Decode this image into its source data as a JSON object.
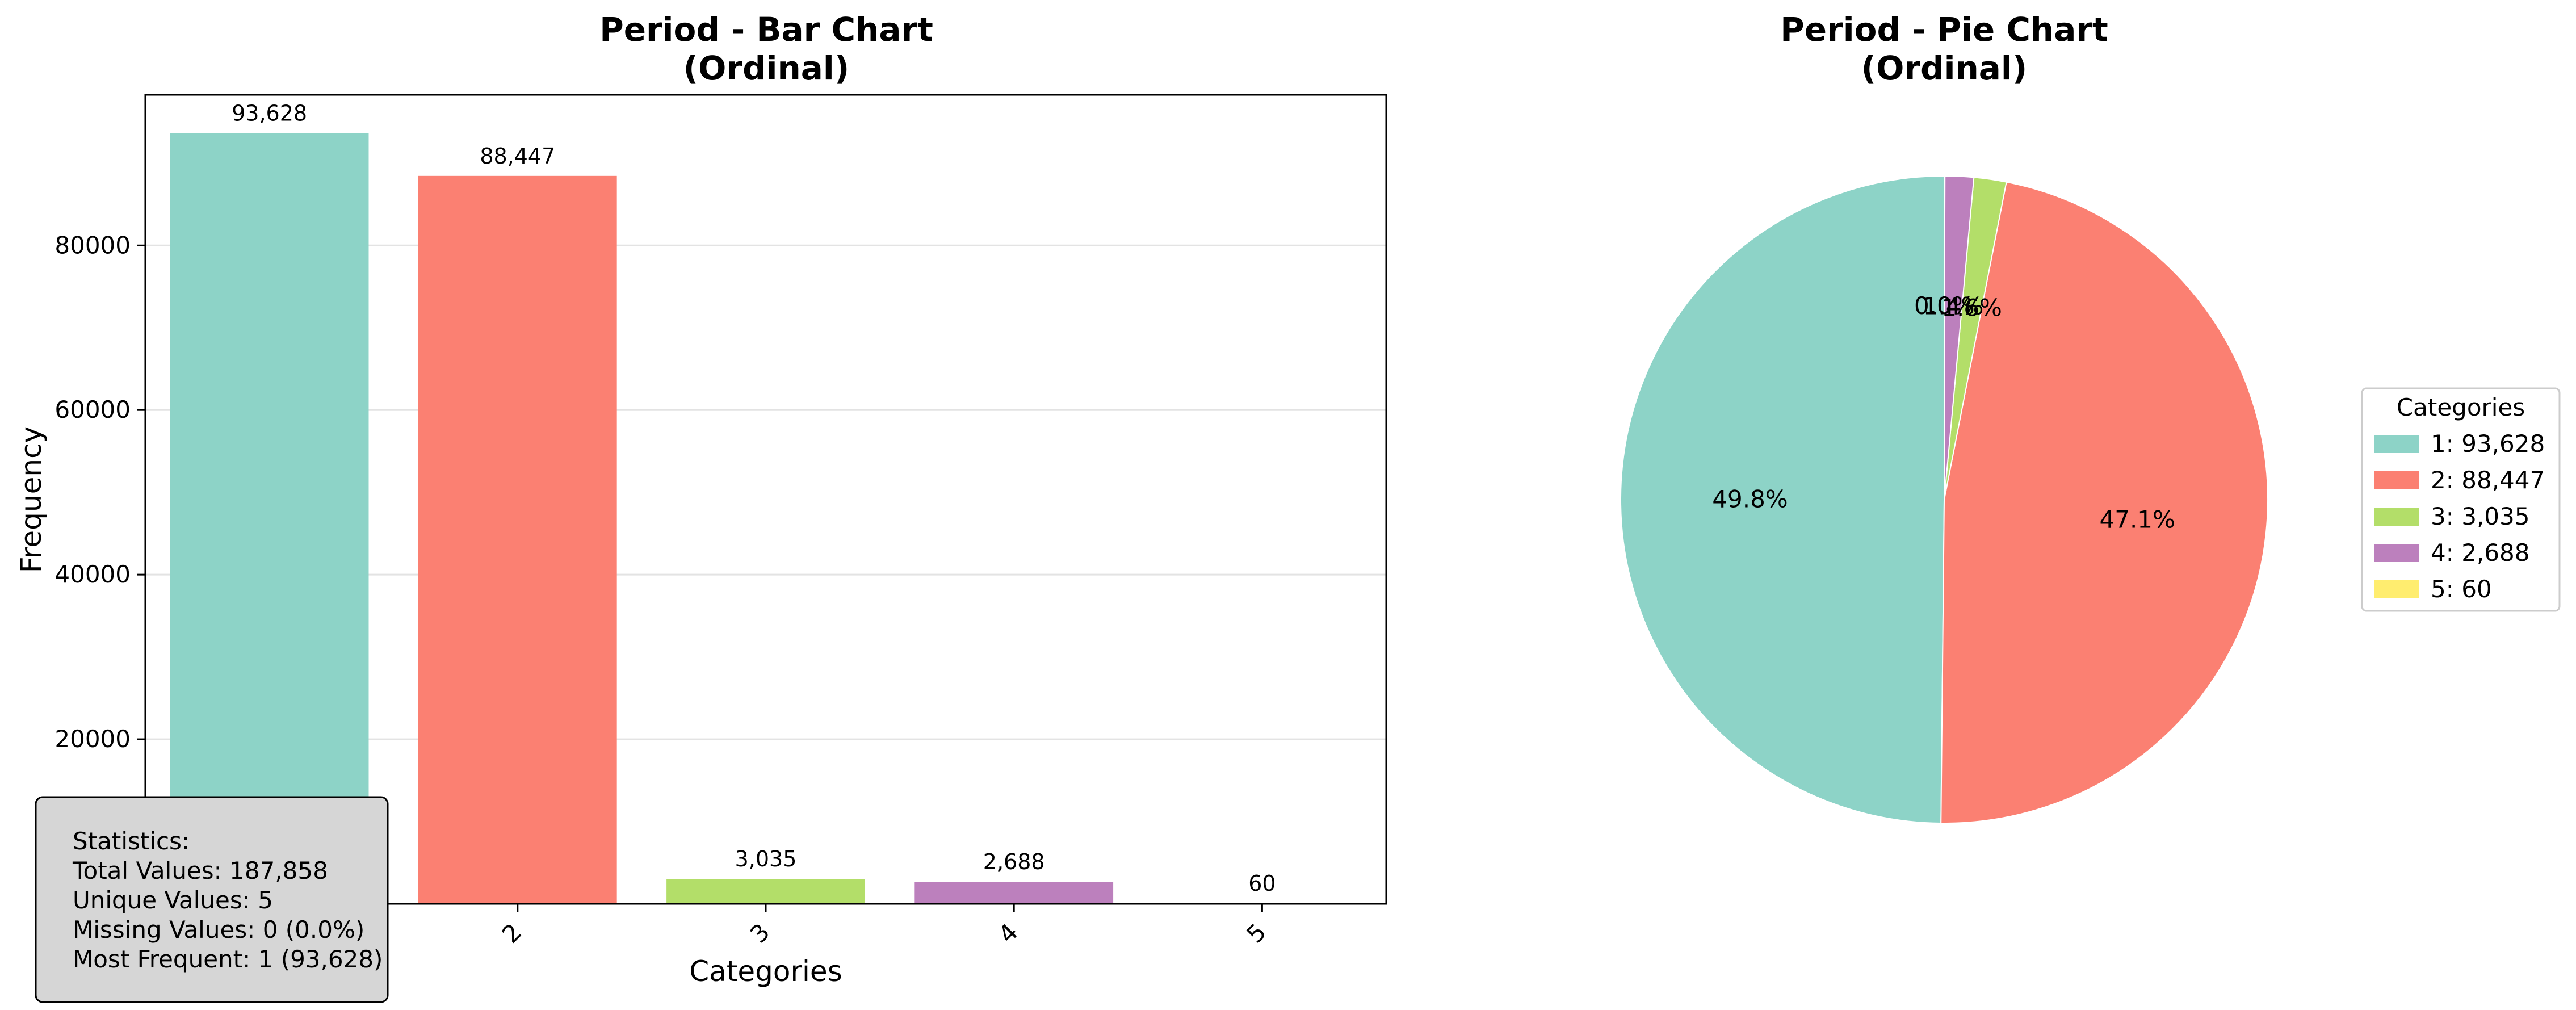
{
  "chart_data": [
    {
      "type": "bar",
      "title_lines": [
        "Period - Bar Chart",
        "(Ordinal)"
      ],
      "xlabel": "Categories",
      "ylabel": "Frequency",
      "categories": [
        "1",
        "2",
        "3",
        "4",
        "5"
      ],
      "values": [
        93628,
        88447,
        3035,
        2688,
        60
      ],
      "value_labels": [
        "93,628",
        "88,447",
        "3,035",
        "2,688",
        "60"
      ],
      "colors": [
        "#8dd3c7",
        "#fb8072",
        "#b3de69",
        "#bc80bd",
        "#ffed6f"
      ],
      "ylim": [
        0,
        98300
      ],
      "yticks": [
        20000,
        40000,
        60000,
        80000
      ],
      "ytick_labels": [
        "20000",
        "40000",
        "60000",
        "80000"
      ],
      "grid": "horizontal",
      "stats": {
        "heading": "Statistics:",
        "lines": [
          "Total Values: 187,858",
          "Unique Values: 5",
          "Missing Values: 0 (0.0%)",
          "Most Frequent: 1 (93,628)"
        ]
      }
    },
    {
      "type": "pie",
      "title_lines": [
        "Period - Pie Chart",
        "(Ordinal)"
      ],
      "categories": [
        "1",
        "2",
        "3",
        "4",
        "5"
      ],
      "values": [
        93628,
        88447,
        3035,
        2688,
        60
      ],
      "percent_labels": [
        "49.8%",
        "47.1%",
        "1.6%",
        "1.4%",
        "0.0%"
      ],
      "colors": [
        "#8dd3c7",
        "#fb8072",
        "#b3de69",
        "#bc80bd",
        "#ffed6f"
      ],
      "legend_title": "Categories",
      "legend_entries": [
        "1: 93,628",
        "2: 88,447",
        "3: 3,035",
        "4: 2,688",
        "5: 60"
      ],
      "legend_position": "right"
    }
  ]
}
